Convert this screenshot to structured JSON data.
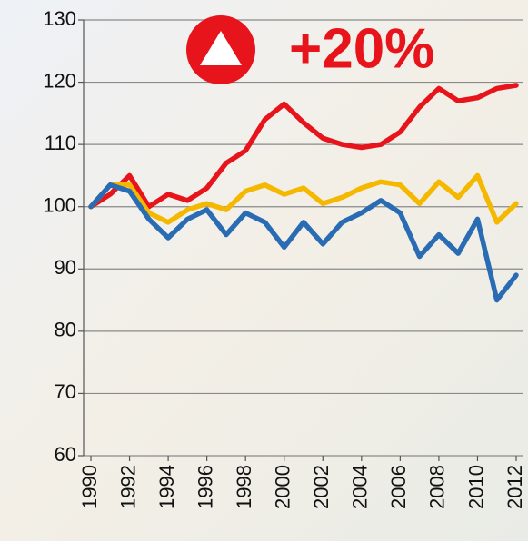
{
  "chart_data": {
    "type": "line",
    "x": [
      1990,
      1991,
      1992,
      1993,
      1994,
      1995,
      1996,
      1997,
      1998,
      1999,
      2000,
      2001,
      2002,
      2003,
      2004,
      2005,
      2006,
      2007,
      2008,
      2009,
      2010,
      2011,
      2012
    ],
    "series": [
      {
        "color": "#e8141c",
        "values": [
          100,
          102,
          105,
          100,
          102,
          101,
          103,
          107,
          109,
          114,
          116.5,
          113.5,
          111,
          110,
          109.5,
          110,
          112,
          116,
          119,
          117,
          117.5,
          119,
          119.5
        ]
      },
      {
        "color": "#f5b800",
        "values": [
          100,
          103.5,
          103.5,
          99,
          97.5,
          99.5,
          100.5,
          99.5,
          102.5,
          103.5,
          102,
          103,
          100.5,
          101.5,
          103,
          104,
          103.5,
          100.5,
          104,
          101.5,
          105,
          97.5,
          100.5
        ]
      },
      {
        "color": "#2a6cb4",
        "values": [
          100,
          103.5,
          102.5,
          98,
          95,
          98,
          99.5,
          95.5,
          99,
          97.5,
          93.5,
          97.5,
          94,
          97.5,
          99,
          101,
          99,
          92,
          95.5,
          92.5,
          98,
          85,
          89
        ]
      }
    ],
    "annotation": "+20%",
    "annotation_color": "#e8141c",
    "xlim": [
      1990,
      2012
    ],
    "xticks": [
      1990,
      1992,
      1994,
      1996,
      1998,
      2000,
      2002,
      2004,
      2006,
      2008,
      2010,
      2012
    ],
    "ylim": [
      60,
      130
    ],
    "yticks": [
      60,
      70,
      80,
      90,
      100,
      110,
      120,
      130
    ],
    "grid": true
  }
}
